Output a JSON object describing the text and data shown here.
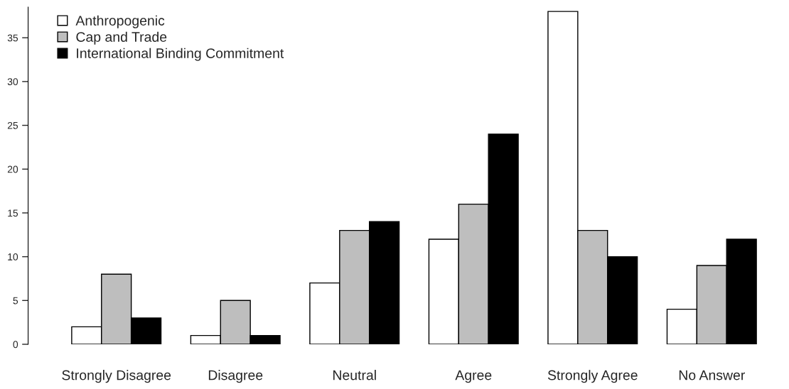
{
  "chart_data": {
    "type": "bar",
    "categories": [
      "Strongly Disagree",
      "Disagree",
      "Neutral",
      "Agree",
      "Strongly Agree",
      "No Answer"
    ],
    "series": [
      {
        "name": "Anthropogenic",
        "color": "#ffffff",
        "values": [
          2,
          1,
          7,
          12,
          38,
          4
        ]
      },
      {
        "name": "Cap and Trade",
        "color": "#bebebe",
        "values": [
          8,
          5,
          13,
          16,
          13,
          9
        ]
      },
      {
        "name": "International Binding Commitment",
        "color": "#000000",
        "values": [
          3,
          1,
          14,
          24,
          10,
          12
        ]
      }
    ],
    "ylim": [
      0,
      38.5
    ],
    "yticks": [
      0,
      5,
      10,
      15,
      20,
      25,
      30,
      35
    ],
    "grid": false,
    "legend": "top left"
  }
}
